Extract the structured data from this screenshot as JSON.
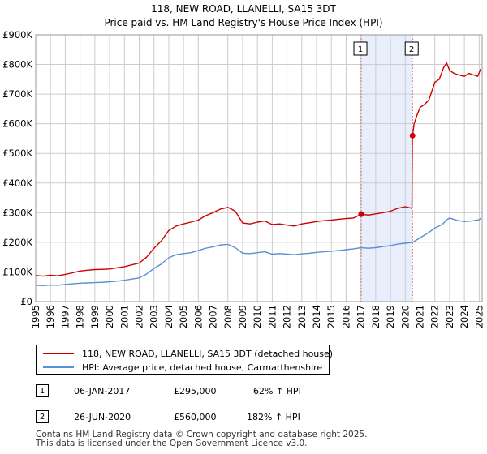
{
  "title_line1": "118, NEW ROAD, LLANELLI, SA15 3DT",
  "title_line2": "Price paid vs. HM Land Registry's House Price Index (HPI)",
  "colors": {
    "property": "#cc0000",
    "hpi": "#5b8fd0",
    "band": "#e8eefc",
    "marker_line": "#e06666",
    "grid": "#cccccc"
  },
  "chart_data": {
    "type": "line",
    "title": "Price paid vs. HM Land Registry's House Price Index (HPI)",
    "xlabel": "",
    "ylabel": "",
    "xlim": [
      1995.0,
      2025.2
    ],
    "ylim": [
      0,
      900000
    ],
    "y_ticks": [
      0,
      100000,
      200000,
      300000,
      400000,
      500000,
      600000,
      700000,
      800000,
      900000
    ],
    "y_tick_labels": [
      "£0",
      "£100K",
      "£200K",
      "£300K",
      "£400K",
      "£500K",
      "£600K",
      "£700K",
      "£800K",
      "£900K"
    ],
    "x_ticks": [
      1995,
      1996,
      1997,
      1998,
      1999,
      2000,
      2001,
      2002,
      2003,
      2004,
      2005,
      2006,
      2007,
      2008,
      2009,
      2010,
      2011,
      2012,
      2013,
      2014,
      2015,
      2016,
      2017,
      2018,
      2019,
      2020,
      2021,
      2022,
      2023,
      2024,
      2025
    ],
    "x_tick_labels": [
      "1995",
      "1996",
      "1997",
      "1998",
      "1999",
      "2000",
      "2001",
      "2002",
      "2003",
      "2004",
      "2005",
      "2006",
      "2007",
      "2008",
      "2009",
      "2010",
      "2011",
      "2012",
      "2013",
      "2014",
      "2015",
      "2016",
      "2017",
      "2018",
      "2019",
      "2020",
      "2021",
      "2022",
      "2023",
      "2024",
      "2025"
    ],
    "grid": true,
    "shaded_period": [
      2017.02,
      2020.49
    ],
    "sale_markers": [
      {
        "label": "1",
        "x": 2017.02,
        "y": 295000
      },
      {
        "label": "2",
        "x": 2020.49,
        "y": 560000
      }
    ],
    "series": [
      {
        "name": "118, NEW ROAD, LLANELLI, SA15 3DT (detached house)",
        "color": "#cc0000",
        "x": [
          1995.0,
          1995.5,
          1996.0,
          1996.5,
          1997.0,
          1997.5,
          1998.0,
          1998.5,
          1999.0,
          1999.5,
          2000.0,
          2000.5,
          2001.0,
          2001.5,
          2002.0,
          2002.5,
          2003.0,
          2003.5,
          2004.0,
          2004.5,
          2005.0,
          2005.5,
          2006.0,
          2006.5,
          2007.0,
          2007.5,
          2008.0,
          2008.5,
          2009.0,
          2009.5,
          2010.0,
          2010.5,
          2011.0,
          2011.5,
          2012.0,
          2012.5,
          2013.0,
          2013.5,
          2014.0,
          2014.5,
          2015.0,
          2015.5,
          2016.0,
          2016.5,
          2017.02,
          2017.5,
          2018.0,
          2018.5,
          2019.0,
          2019.5,
          2020.0,
          2020.45,
          2020.49,
          2020.6,
          2020.8,
          2021.0,
          2021.3,
          2021.6,
          2022.0,
          2022.3,
          2022.6,
          2022.8,
          2023.0,
          2023.3,
          2023.6,
          2024.0,
          2024.3,
          2024.6,
          2024.9,
          2025.1
        ],
        "values": [
          88000,
          86000,
          89000,
          87000,
          92000,
          97000,
          103000,
          106000,
          108000,
          109000,
          110000,
          114000,
          118000,
          124000,
          130000,
          150000,
          180000,
          205000,
          240000,
          255000,
          262000,
          268000,
          275000,
          290000,
          300000,
          312000,
          318000,
          305000,
          265000,
          262000,
          268000,
          272000,
          260000,
          262000,
          258000,
          255000,
          262000,
          266000,
          270000,
          273000,
          275000,
          278000,
          280000,
          282000,
          295000,
          292000,
          296000,
          300000,
          305000,
          315000,
          320000,
          315000,
          560000,
          600000,
          630000,
          655000,
          665000,
          680000,
          740000,
          750000,
          790000,
          805000,
          780000,
          770000,
          765000,
          760000,
          770000,
          765000,
          760000,
          785000
        ]
      },
      {
        "name": "HPI: Average price, detached house, Carmarthenshire",
        "color": "#5b8fd0",
        "x": [
          1995.0,
          1995.5,
          1996.0,
          1996.5,
          1997.0,
          1997.5,
          1998.0,
          1998.5,
          1999.0,
          1999.5,
          2000.0,
          2000.5,
          2001.0,
          2001.5,
          2002.0,
          2002.5,
          2003.0,
          2003.5,
          2004.0,
          2004.5,
          2005.0,
          2005.5,
          2006.0,
          2006.5,
          2007.0,
          2007.5,
          2008.0,
          2008.5,
          2009.0,
          2009.5,
          2010.0,
          2010.5,
          2011.0,
          2011.5,
          2012.0,
          2012.5,
          2013.0,
          2013.5,
          2014.0,
          2014.5,
          2015.0,
          2015.5,
          2016.0,
          2016.5,
          2017.0,
          2017.5,
          2018.0,
          2018.5,
          2019.0,
          2019.5,
          2020.0,
          2020.5,
          2021.0,
          2021.5,
          2022.0,
          2022.5,
          2022.8,
          2023.0,
          2023.5,
          2024.0,
          2024.5,
          2025.0,
          2025.1
        ],
        "values": [
          55000,
          54000,
          56000,
          55000,
          58000,
          60000,
          62000,
          63000,
          64000,
          65000,
          67000,
          69000,
          72000,
          76000,
          80000,
          93000,
          112000,
          127000,
          148000,
          158000,
          162000,
          165000,
          172000,
          180000,
          185000,
          191000,
          193000,
          182000,
          163000,
          162000,
          165000,
          168000,
          160000,
          162000,
          160000,
          158000,
          161000,
          163000,
          166000,
          168000,
          170000,
          172000,
          175000,
          178000,
          182000,
          180000,
          182000,
          186000,
          189000,
          194000,
          197000,
          200000,
          215000,
          230000,
          248000,
          260000,
          276000,
          282000,
          274000,
          270000,
          272000,
          276000,
          282000
        ]
      }
    ]
  },
  "legend": {
    "property_label": "118, NEW ROAD, LLANELLI, SA15 3DT (detached house)",
    "hpi_label": "HPI: Average price, detached house, Carmarthenshire"
  },
  "sales": [
    {
      "num": "1",
      "date": "06-JAN-2017",
      "price": "£295,000",
      "hpi": "62% ↑ HPI"
    },
    {
      "num": "2",
      "date": "26-JUN-2020",
      "price": "£560,000",
      "hpi": "182% ↑ HPI"
    }
  ],
  "footer": {
    "line1": "Contains HM Land Registry data © Crown copyright and database right 2025.",
    "line2": "This data is licensed under the Open Government Licence v3.0."
  }
}
